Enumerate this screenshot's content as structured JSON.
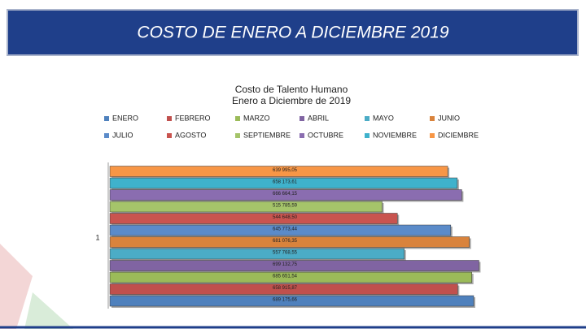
{
  "header": {
    "title": "COSTO DE ENERO A DICIEMBRE 2019"
  },
  "chart_data": {
    "type": "hbar",
    "title": "Costo de Talento Humano",
    "subtitle": "Enero a Diciembre de 2019",
    "categories": [
      "1"
    ],
    "xlim": [
      0,
      700000
    ],
    "series": [
      {
        "name": "ENERO",
        "color": "#4f81bd",
        "values": [
          689175.66
        ],
        "value_labels": [
          "689 175,66"
        ]
      },
      {
        "name": "FEBRERO",
        "color": "#c0504d",
        "values": [
          658915.87
        ],
        "value_labels": [
          "658 915,87"
        ]
      },
      {
        "name": "MARZO",
        "color": "#9bbb59",
        "values": [
          685651.54
        ],
        "value_labels": [
          "685 651,54"
        ]
      },
      {
        "name": "ABRIL",
        "color": "#8064a2",
        "values": [
          699132.75
        ],
        "value_labels": [
          "699 132,75"
        ]
      },
      {
        "name": "MAYO",
        "color": "#4bacc6",
        "values": [
          557768.55
        ],
        "value_labels": [
          "557 768,55"
        ]
      },
      {
        "name": "JUNIO",
        "color": "#d9833c",
        "values": [
          681076.35
        ],
        "value_labels": [
          "681 076,35"
        ]
      },
      {
        "name": "JULIO",
        "color": "#5b8bc9",
        "values": [
          645773.44
        ],
        "value_labels": [
          "645 773,44"
        ]
      },
      {
        "name": "AGOSTO",
        "color": "#c9544f",
        "values": [
          544648.5
        ],
        "value_labels": [
          "544 648,50"
        ]
      },
      {
        "name": "SEPTIEMBRE",
        "color": "#a5c46a",
        "values": [
          515785.59
        ],
        "value_labels": [
          "515 785,59"
        ]
      },
      {
        "name": "OCTUBRE",
        "color": "#8a6db0",
        "values": [
          666664.15
        ],
        "value_labels": [
          "666 664,15"
        ]
      },
      {
        "name": "NOVIEMBRE",
        "color": "#3fb2cc",
        "values": [
          658173.61
        ],
        "value_labels": [
          "658 173,61"
        ]
      },
      {
        "name": "DICIEMBRE",
        "color": "#f79646",
        "values": [
          639995.05
        ],
        "value_labels": [
          "639 995,05"
        ]
      }
    ]
  }
}
